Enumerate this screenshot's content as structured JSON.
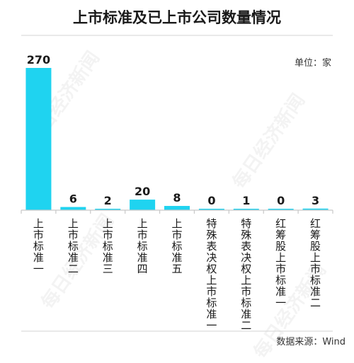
{
  "chart_data": {
    "type": "bar",
    "title": "上市标准及已上市公司数量情况",
    "unit_label": "单位：家",
    "source_label": "数据来源：Wind",
    "categories": [
      "上市标准一",
      "上市标准二",
      "上市标准三",
      "上市标准四",
      "上市标准五",
      "特殊表决权上市标准一",
      "特殊表决权上市标准二",
      "红筹股上市标准一",
      "红筹股上市标准二"
    ],
    "values": [
      270,
      6,
      2,
      20,
      8,
      0,
      1,
      0,
      3
    ],
    "bar_color": "#1FD3F0",
    "axis_color": "#c8c8c8",
    "ylim": [
      0,
      270
    ],
    "watermark": "每日经济新闻"
  }
}
